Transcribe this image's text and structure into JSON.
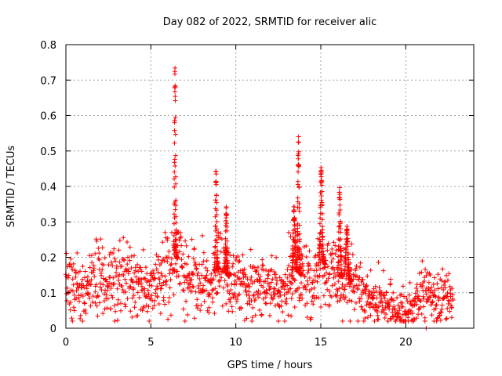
{
  "chart_data": {
    "type": "scatter",
    "title": "Day 082 of 2022, SRMTID for receiver alic",
    "xlabel": "GPS time / hours",
    "ylabel": "SRMTID / TECUs",
    "xlim": [
      0,
      24
    ],
    "ylim": [
      0,
      0.8
    ],
    "xticks": [
      0,
      5,
      10,
      15,
      20
    ],
    "yticks": [
      0,
      0.1,
      0.2,
      0.3,
      0.4,
      0.5,
      0.6,
      0.7,
      0.8
    ],
    "xtick_labels": [
      "0",
      "5",
      "10",
      "15",
      "20"
    ],
    "ytick_labels": [
      "0",
      "0.1",
      "0.2",
      "0.3",
      "0.4",
      "0.5",
      "0.6",
      "0.7",
      "0.8"
    ],
    "grid": true,
    "marker": "+",
    "color": "#ff0000",
    "trend": [
      [
        0.0,
        0.14
      ],
      [
        0.5,
        0.11
      ],
      [
        1.0,
        0.1
      ],
      [
        1.5,
        0.13
      ],
      [
        2.0,
        0.15
      ],
      [
        2.5,
        0.12
      ],
      [
        3.0,
        0.14
      ],
      [
        3.5,
        0.16
      ],
      [
        4.0,
        0.13
      ],
      [
        4.5,
        0.11
      ],
      [
        5.0,
        0.12
      ],
      [
        5.5,
        0.14
      ],
      [
        6.0,
        0.16
      ],
      [
        6.5,
        0.2
      ],
      [
        7.0,
        0.16
      ],
      [
        7.5,
        0.15
      ],
      [
        8.0,
        0.13
      ],
      [
        8.5,
        0.11
      ],
      [
        9.0,
        0.17
      ],
      [
        9.5,
        0.15
      ],
      [
        10.0,
        0.13
      ],
      [
        10.5,
        0.12
      ],
      [
        11.0,
        0.11
      ],
      [
        11.5,
        0.12
      ],
      [
        12.0,
        0.11
      ],
      [
        12.5,
        0.09
      ],
      [
        13.0,
        0.1
      ],
      [
        13.5,
        0.17
      ],
      [
        14.0,
        0.14
      ],
      [
        14.5,
        0.12
      ],
      [
        15.0,
        0.2
      ],
      [
        15.5,
        0.16
      ],
      [
        16.0,
        0.14
      ],
      [
        16.5,
        0.15
      ],
      [
        17.0,
        0.12
      ],
      [
        17.5,
        0.09
      ],
      [
        18.0,
        0.08
      ],
      [
        18.5,
        0.07
      ],
      [
        19.0,
        0.06
      ],
      [
        19.5,
        0.05
      ],
      [
        20.0,
        0.04
      ],
      [
        20.5,
        0.06
      ],
      [
        21.0,
        0.1
      ],
      [
        21.5,
        0.08
      ],
      [
        22.0,
        0.08
      ],
      [
        22.5,
        0.09
      ],
      [
        22.8,
        0.09
      ]
    ],
    "bursts": [
      {
        "x_start": 6.35,
        "x_end": 6.55,
        "peak": 0.76
      },
      {
        "x_start": 8.75,
        "x_end": 9.0,
        "peak": 0.45
      },
      {
        "x_start": 9.35,
        "x_end": 9.6,
        "peak": 0.35
      },
      {
        "x_start": 13.3,
        "x_end": 13.65,
        "peak": 0.35
      },
      {
        "x_start": 13.6,
        "x_end": 13.85,
        "peak": 0.55
      },
      {
        "x_start": 14.9,
        "x_end": 15.25,
        "peak": 0.47
      },
      {
        "x_start": 16.0,
        "x_end": 16.3,
        "peak": 0.4
      },
      {
        "x_start": 16.4,
        "x_end": 16.8,
        "peak": 0.29
      }
    ],
    "outliers": [
      {
        "x": 21.2,
        "y": 0.0
      }
    ]
  }
}
